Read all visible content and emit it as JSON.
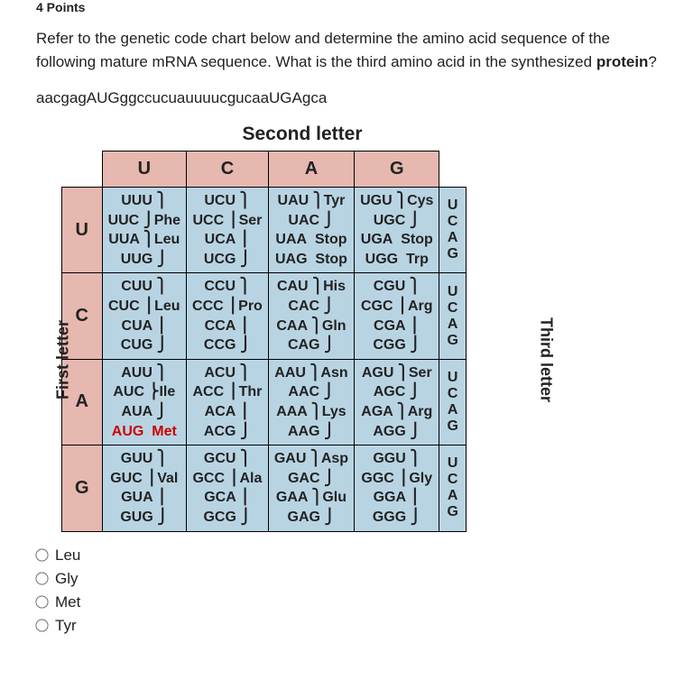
{
  "points_label": "4 Points",
  "question_p1": "Refer to the genetic code chart below and determine the amino acid sequence of the following mature mRNA sequence.  What is the third amino acid in the synthesized ",
  "question_bold": "protein",
  "question_p2": "?",
  "sequence": "aacgagAUGggccucuauuuucgucaaUGAgca",
  "labels": {
    "second": "Second letter",
    "first": "First letter",
    "third": "Third letter"
  },
  "headers": {
    "u": "U",
    "c": "C",
    "a": "A",
    "g": "G"
  },
  "side": {
    "u": "U",
    "c": "C",
    "a": "A",
    "g": "G"
  },
  "cells": {
    "uu": [
      "UUU",
      "UUC",
      "UUA",
      "UUG"
    ],
    "uu_aa1": "Phe",
    "uu_aa2": "Leu",
    "uc": [
      "UCU",
      "UCC",
      "UCA",
      "UCG"
    ],
    "uc_aa": "Ser",
    "ua": [
      "UAU",
      "UAC",
      "UAA",
      "UAG"
    ],
    "ua_aa1": "Tyr",
    "ua_stop1": "Stop",
    "ua_stop2": "Stop",
    "ug": [
      "UGU",
      "UGC",
      "UGA",
      "UGG"
    ],
    "ug_aa1": "Cys",
    "ug_stop": "Stop",
    "ug_aa2": "Trp",
    "cu": [
      "CUU",
      "CUC",
      "CUA",
      "CUG"
    ],
    "cu_aa": "Leu",
    "cc": [
      "CCU",
      "CCC",
      "CCA",
      "CCG"
    ],
    "cc_aa": "Pro",
    "ca": [
      "CAU",
      "CAC",
      "CAA",
      "CAG"
    ],
    "ca_aa1": "His",
    "ca_aa2": "Gln",
    "cg": [
      "CGU",
      "CGC",
      "CGA",
      "CGG"
    ],
    "cg_aa": "Arg",
    "au": [
      "AUU",
      "AUC",
      "AUA",
      "AUG"
    ],
    "au_aa1": "Ile",
    "au_aa2": "Met",
    "ac": [
      "ACU",
      "ACC",
      "ACA",
      "ACG"
    ],
    "ac_aa": "Thr",
    "aa": [
      "AAU",
      "AAC",
      "AAA",
      "AAG"
    ],
    "aa_aa1": "Asn",
    "aa_aa2": "Lys",
    "ag": [
      "AGU",
      "AGC",
      "AGA",
      "AGG"
    ],
    "ag_aa1": "Ser",
    "ag_aa2": "Arg",
    "gu": [
      "GUU",
      "GUC",
      "GUA",
      "GUG"
    ],
    "gu_aa": "Val",
    "gc": [
      "GCU",
      "GCC",
      "GCA",
      "GCG"
    ],
    "gc_aa": "Ala",
    "ga": [
      "GAU",
      "GAC",
      "GAA",
      "GAG"
    ],
    "ga_aa1": "Asp",
    "ga_aa2": "Glu",
    "gg": [
      "GGU",
      "GGC",
      "GGA",
      "GGG"
    ],
    "gg_aa": "Gly"
  },
  "colors": {
    "header_bg": "#e6b8af",
    "cell_bg": "#b8d4e3",
    "red": "#c00"
  },
  "options": {
    "o1": "Leu",
    "o2": "Gly",
    "o3": "Met",
    "o4": "Tyr"
  }
}
